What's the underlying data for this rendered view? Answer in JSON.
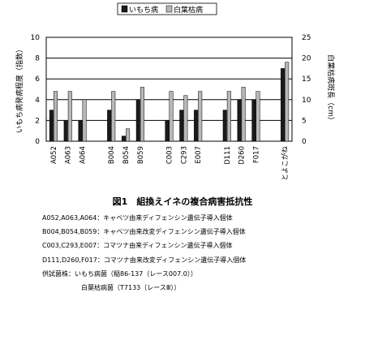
{
  "chart_data": {
    "type": "bar",
    "categories": [
      "A052",
      "A063",
      "A064",
      "",
      "B004",
      "B054",
      "B059",
      "",
      "C003",
      "C293",
      "E007",
      "",
      "D111",
      "D260",
      "F017",
      "",
      "とよこがね"
    ],
    "series": [
      {
        "name": "いもち病",
        "axis": "left",
        "color": "#1a1a1a",
        "values": [
          3,
          2,
          2,
          null,
          3,
          0.5,
          4,
          null,
          2,
          3,
          3,
          null,
          3,
          4,
          4,
          null,
          7
        ]
      },
      {
        "name": "白葉枯病",
        "axis": "right",
        "color": "#b8b8b8",
        "values": [
          12,
          12,
          10,
          null,
          12,
          3,
          13,
          null,
          12,
          11,
          12,
          null,
          12,
          13,
          12,
          null,
          19
        ]
      }
    ],
    "ylabel": "いもち病発病程度（指数）",
    "y2label": "白葉枯病斑長（cm）",
    "ylim": [
      0,
      10
    ],
    "y2lim": [
      0,
      25
    ],
    "yticks": [
      0,
      2,
      4,
      6,
      8,
      10
    ],
    "y2ticks": [
      0,
      5,
      10,
      15,
      20,
      25
    ],
    "grid": true,
    "legend_position": "top-right"
  },
  "caption": {
    "title": "図1　組換えイネの複合病害抵抗性",
    "lines": [
      "A052,A063,A064：キャベツ由来ディフェンシン遺伝子導入個体",
      "B004,B054,B059：キャベツ由来改変ディフェンシン遺伝子導入個体",
      "C003,C293,E007：コマツナ由来ディフェンシン遺伝子導入個体",
      "D111,D260,F017：コマツナ由来改変ディフェンシン遺伝子導入個体",
      "供試菌株：いもち病菌（稲86-137（レース007.0））"
    ],
    "indent_line": "白葉枯病菌（T7133（レースⅢ））"
  }
}
